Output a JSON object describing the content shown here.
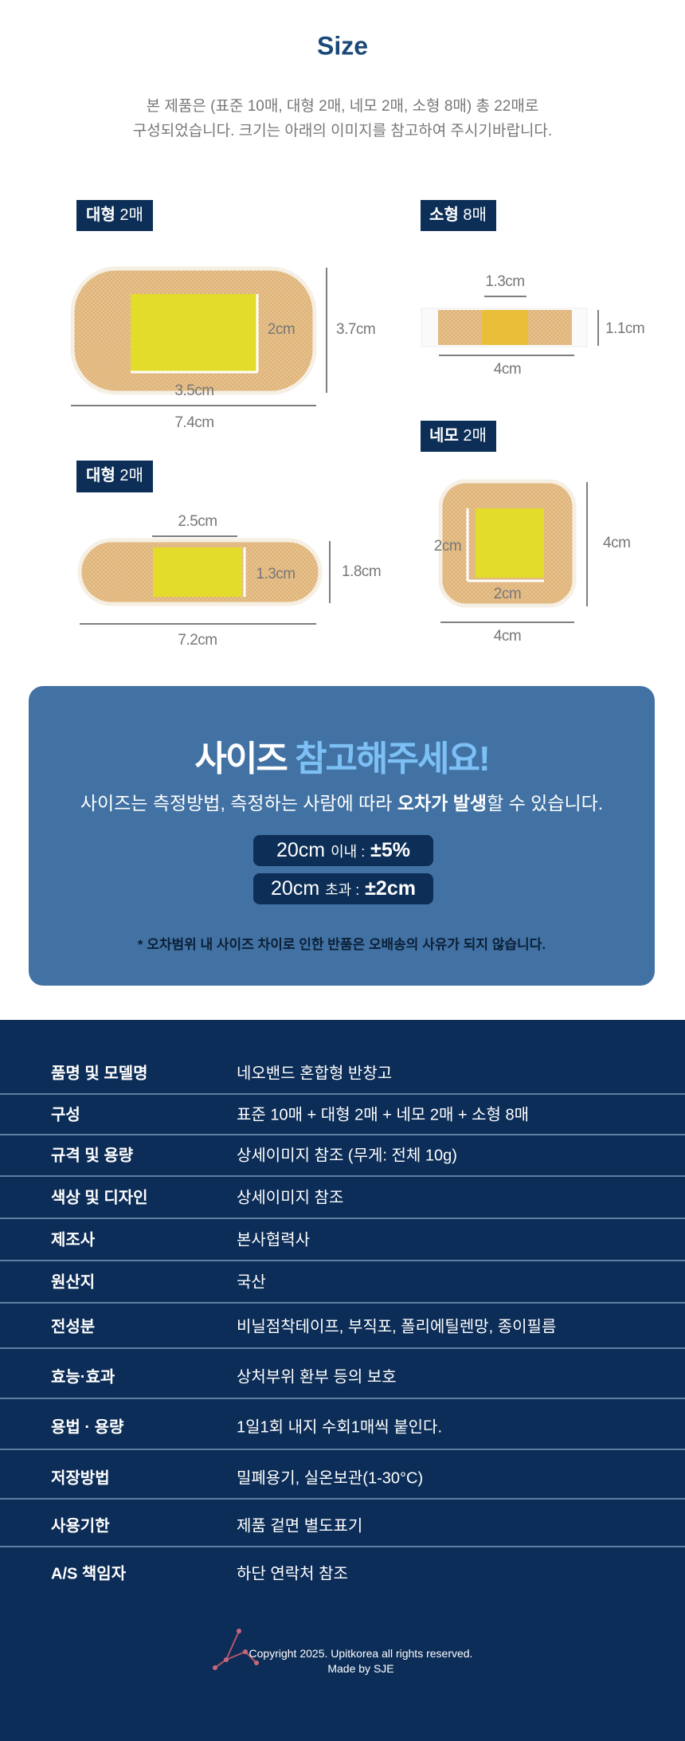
{
  "size_section": {
    "title": "Size",
    "description": [
      "본 제품은 (표준 10매, 대형 2매, 네모 2매, 소형 8매) 총 22매로",
      "구성되었습니다. 크기는 아래의 이미지를 참고하여 주시기바랍니다."
    ],
    "items": [
      {
        "type": "대형",
        "count": "2매",
        "inner_height": "2cm",
        "outer_height": "3.7cm",
        "inner_width": "3.5cm",
        "outer_width": "7.4cm"
      },
      {
        "type": "소형",
        "count": "8매",
        "inner_width": "1.3cm",
        "outer_height": "1.1cm",
        "outer_width": "4cm"
      },
      {
        "type": "대형",
        "count": "2매",
        "inner_width": "2.5cm",
        "inner_height": "1.3cm",
        "outer_height": "1.8cm",
        "outer_width": "7.2cm"
      },
      {
        "type": "네모",
        "count": "2매",
        "inner_height": "2cm",
        "outer_height": "4cm",
        "inner_width": "2cm",
        "outer_width": "4cm"
      }
    ]
  },
  "notice": {
    "title": [
      "사이즈",
      "참고해주세요!"
    ],
    "text": [
      "사이즈는 측정방법, 측정하는 사람에 따라 ",
      "오차가 발생",
      "할 수 있습니다."
    ],
    "tolerances": [
      [
        "20cm",
        "이내 :",
        "±5%"
      ],
      [
        "20cm",
        "초과 :",
        "±2cm"
      ]
    ],
    "footnote": "* 오차범위 내 사이즈 차이로 인한 반품은 오배송의 사유가 되지 않습니다."
  },
  "spec": {
    "rows": [
      [
        "품명 및 모델명",
        "네오밴드 혼합형 반창고"
      ],
      [
        "구성",
        "표준 10매 + 대형 2매 + 네모 2매 + 소형 8매"
      ],
      [
        "규격 및 용량",
        "상세이미지 참조 (무게: 전체 10g)"
      ],
      [
        "색상 및 디자인",
        "상세이미지 참조"
      ],
      [
        "제조사",
        "본사협력사"
      ],
      [
        "원산지",
        "국산"
      ],
      [
        "전성분",
        "비닐점착테이프, 부직포, 폴리에틸렌망, 종이필름"
      ],
      [
        "효능·효과",
        "상처부위 환부 등의 보호"
      ],
      [
        "용법 · 용량",
        "1일1회 내지 수회1매씩 붙인다."
      ],
      [
        "저장방법",
        "밀폐용기, 실온보관(1-30°C)"
      ],
      [
        "사용기한",
        "제품 겉면 별도표기"
      ],
      [
        "A/S 책임자",
        "하단 연락처 참조"
      ]
    ]
  },
  "footer": {
    "copyright": "Copyright 2025. Upitkorea all rights reserved.",
    "made_by": "Made by SJE"
  }
}
